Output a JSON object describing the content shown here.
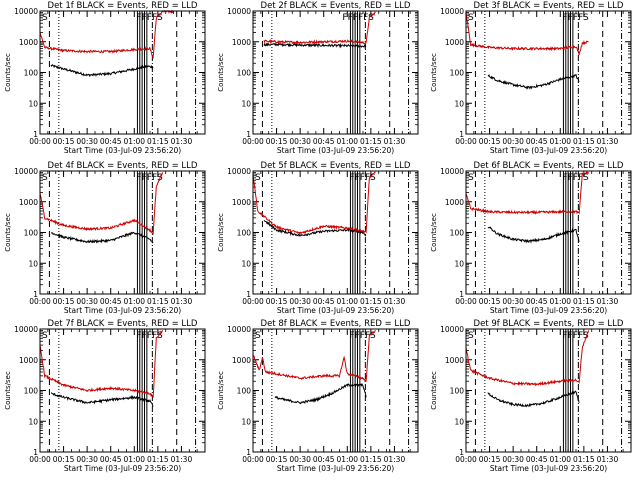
{
  "chart_data": [
    {
      "type": "line",
      "title": "Det 1f BLACK = Events, RED = LLD",
      "xlabel": "Start Time (03-Jul-09 23:56:20)",
      "ylabel": "Counts/sec",
      "xticks": [
        "00:00",
        "00:15",
        "00:30",
        "00:45",
        "01:00",
        "01:15",
        "01:30"
      ],
      "yticks": [
        "1",
        "10",
        "100",
        "1000",
        "10000"
      ],
      "ylim": [
        1,
        10000
      ],
      "yscale": "log",
      "xlim_minutes": [
        0,
        105
      ],
      "flag_labels": [
        "S",
        "FFFFS"
      ],
      "series": [
        {
          "name": "Events",
          "color": "#000000",
          "minutes": [
            7,
            15,
            30,
            45,
            60,
            68,
            72
          ],
          "values": [
            170,
            130,
            82,
            92,
            130,
            160,
            150
          ]
        },
        {
          "name": "LLD",
          "color": "#cc0000",
          "minutes": [
            0,
            3,
            15,
            30,
            45,
            60,
            70,
            72,
            74,
            78,
            85
          ],
          "values": [
            2000,
            650,
            520,
            480,
            480,
            560,
            600,
            300,
            6000,
            9500,
            9500
          ]
        }
      ],
      "verticals": {
        "dashed": [
          6,
          87
        ],
        "dotted": [
          12
        ],
        "solid": [
          62,
          63.5,
          65,
          66.5,
          68
        ],
        "dashdot": [
          71.5,
          99
        ]
      }
    },
    {
      "type": "line",
      "title": "Det 2f BLACK = Events, RED = LLD",
      "xlabel": "Start Time (03-Jul-09 23:56:20)",
      "ylabel": "Counts/sec",
      "xticks": [
        "00:00",
        "00:15",
        "00:30",
        "00:45",
        "01:00",
        "01:15",
        "01:30"
      ],
      "yticks": [
        "1",
        "10",
        "100",
        "1000",
        "10000"
      ],
      "ylim": [
        1,
        10000
      ],
      "yscale": "log",
      "xlim_minutes": [
        0,
        105
      ],
      "flag_labels": [
        "FFFFFS"
      ],
      "series": [
        {
          "name": "Events",
          "color": "#000000",
          "minutes": [
            7,
            15,
            30,
            45,
            60,
            70,
            72
          ],
          "values": [
            800,
            820,
            780,
            760,
            740,
            720,
            700
          ]
        },
        {
          "name": "LLD",
          "color": "#cc0000",
          "minutes": [
            7,
            15,
            30,
            45,
            60,
            70,
            72,
            74,
            78
          ],
          "values": [
            1050,
            1000,
            950,
            1000,
            1050,
            950,
            900,
            6000,
            9000
          ]
        }
      ],
      "verticals": {
        "dashed": [
          6,
          87
        ],
        "dotted": [
          12
        ],
        "solid": [
          62,
          63.5,
          65,
          66.5,
          68
        ],
        "dashdot": [
          71.5,
          99
        ]
      }
    },
    {
      "type": "line",
      "title": "Det 3f BLACK = Events, RED = LLD",
      "xlabel": "Start Time (03-Jul-09 23:56:20)",
      "ylabel": "Counts/sec",
      "xticks": [
        "00:00",
        "00:15",
        "00:30",
        "00:45",
        "01:00",
        "01:15",
        "01:30"
      ],
      "yticks": [
        "1",
        "10",
        "100",
        "1000",
        "10000"
      ],
      "ylim": [
        1,
        10000
      ],
      "yscale": "log",
      "xlim_minutes": [
        0,
        105
      ],
      "flag_labels": [
        "S",
        "FFFFS"
      ],
      "series": [
        {
          "name": "Events",
          "color": "#000000",
          "minutes": [
            14,
            20,
            30,
            40,
            50,
            60,
            70,
            72
          ],
          "values": [
            80,
            55,
            40,
            32,
            40,
            60,
            80,
            50
          ]
        },
        {
          "name": "LLD",
          "color": "#cc0000",
          "minutes": [
            0,
            3,
            15,
            30,
            45,
            60,
            70,
            72,
            74,
            78
          ],
          "values": [
            9000,
            800,
            650,
            600,
            600,
            600,
            700,
            400,
            900,
            1000
          ]
        }
      ],
      "verticals": {
        "dashed": [
          6,
          87
        ],
        "dotted": [
          12
        ],
        "solid": [
          62,
          63.5,
          65,
          66.5,
          68
        ],
        "dashdot": [
          71.5,
          99
        ]
      }
    },
    {
      "type": "line",
      "title": "Det 4f BLACK = Events, RED = LLD",
      "xlabel": "Start Time (03-Jul-09 23:56:20)",
      "ylabel": "Counts/sec",
      "xticks": [
        "00:00",
        "00:15",
        "00:30",
        "00:45",
        "01:00",
        "01:15",
        "01:30"
      ],
      "yticks": [
        "1",
        "10",
        "100",
        "1000",
        "10000"
      ],
      "ylim": [
        1,
        10000
      ],
      "yscale": "log",
      "xlim_minutes": [
        0,
        105
      ],
      "flag_labels": [
        "S",
        "FFFFS"
      ],
      "series": [
        {
          "name": "Events",
          "color": "#000000",
          "minutes": [
            7,
            15,
            30,
            45,
            60,
            70,
            72
          ],
          "values": [
            100,
            70,
            50,
            55,
            100,
            60,
            45
          ]
        },
        {
          "name": "LLD",
          "color": "#cc0000",
          "minutes": [
            0,
            3,
            15,
            30,
            45,
            60,
            70,
            72,
            74,
            78
          ],
          "values": [
            2000,
            300,
            170,
            130,
            140,
            250,
            120,
            90,
            3000,
            9000
          ]
        }
      ],
      "verticals": {
        "dashed": [
          6,
          87
        ],
        "dotted": [
          12
        ],
        "solid": [
          62,
          63.5,
          65,
          66.5,
          68
        ],
        "dashdot": [
          71.5,
          99
        ]
      }
    },
    {
      "type": "line",
      "title": "Det 5f BLACK = Events, RED = LLD",
      "xlabel": "Start Time (03-Jul-09 23:56:20)",
      "ylabel": "Counts/sec",
      "xticks": [
        "00:00",
        "00:15",
        "00:30",
        "00:45",
        "01:00",
        "01:15",
        "01:30"
      ],
      "yticks": [
        "1",
        "10",
        "100",
        "1000",
        "10000"
      ],
      "ylim": [
        1,
        10000
      ],
      "yscale": "log",
      "xlim_minutes": [
        0,
        105
      ],
      "flag_labels": [
        "S",
        "FFFFS"
      ],
      "series": [
        {
          "name": "Events",
          "color": "#000000",
          "minutes": [
            7,
            15,
            30,
            45,
            60,
            70,
            72
          ],
          "values": [
            250,
            120,
            80,
            110,
            120,
            100,
            80
          ]
        },
        {
          "name": "LLD",
          "color": "#cc0000",
          "minutes": [
            0,
            3,
            15,
            30,
            45,
            60,
            70,
            72,
            74,
            78
          ],
          "values": [
            8000,
            500,
            150,
            95,
            160,
            140,
            110,
            100,
            6000,
            9000
          ]
        }
      ],
      "verticals": {
        "dashed": [
          6,
          87
        ],
        "dotted": [
          12
        ],
        "solid": [
          62,
          63.5,
          65,
          66.5,
          68
        ],
        "dashdot": [
          71.5,
          99
        ]
      }
    },
    {
      "type": "line",
      "title": "Det 6f BLACK = Events, RED = LLD",
      "xlabel": "Start Time (03-Jul-09 23:56:20)",
      "ylabel": "Counts/sec",
      "xticks": [
        "00:00",
        "00:15",
        "00:30",
        "00:45",
        "01:00",
        "01:15",
        "01:30"
      ],
      "yticks": [
        "1",
        "10",
        "100",
        "1000",
        "10000"
      ],
      "ylim": [
        1,
        10000
      ],
      "yscale": "log",
      "xlim_minutes": [
        0,
        105
      ],
      "flag_labels": [
        "S",
        "FFFFS"
      ],
      "series": [
        {
          "name": "Events",
          "color": "#000000",
          "minutes": [
            14,
            20,
            30,
            40,
            50,
            60,
            70,
            72
          ],
          "values": [
            160,
            90,
            60,
            52,
            60,
            90,
            120,
            50
          ]
        },
        {
          "name": "LLD",
          "color": "#cc0000",
          "minutes": [
            0,
            3,
            15,
            30,
            45,
            60,
            70,
            72,
            74,
            78
          ],
          "values": [
            1800,
            600,
            470,
            450,
            450,
            470,
            480,
            420,
            8000,
            9000
          ]
        }
      ],
      "verticals": {
        "dashed": [
          6,
          87
        ],
        "dotted": [
          12
        ],
        "solid": [
          62,
          63.5,
          65,
          66.5,
          68
        ],
        "dashdot": [
          71.5,
          99
        ]
      }
    },
    {
      "type": "line",
      "title": "Det 7f BLACK = Events, RED = LLD",
      "xlabel": "Start Time (03-Jul-09 23:56:20)",
      "ylabel": "Counts/sec",
      "xticks": [
        "00:00",
        "00:15",
        "00:30",
        "00:45",
        "01:00",
        "01:15",
        "01:30"
      ],
      "yticks": [
        "1",
        "10",
        "100",
        "1000",
        "10000"
      ],
      "ylim": [
        1,
        10000
      ],
      "yscale": "log",
      "xlim_minutes": [
        0,
        105
      ],
      "flag_labels": [
        "S",
        "FFFFS"
      ],
      "series": [
        {
          "name": "Events",
          "color": "#000000",
          "minutes": [
            7,
            15,
            30,
            45,
            60,
            70,
            72
          ],
          "values": [
            80,
            60,
            40,
            50,
            60,
            45,
            30
          ]
        },
        {
          "name": "LLD",
          "color": "#cc0000",
          "minutes": [
            0,
            3,
            15,
            30,
            45,
            60,
            70,
            72,
            74,
            78
          ],
          "values": [
            3000,
            300,
            150,
            100,
            120,
            100,
            80,
            60,
            5000,
            9000
          ]
        }
      ],
      "verticals": {
        "dashed": [
          6,
          87
        ],
        "dotted": [
          12
        ],
        "solid": [
          62,
          63.5,
          65,
          66.5,
          68
        ],
        "dashdot": [
          71.5,
          99
        ]
      }
    },
    {
      "type": "line",
      "title": "Det 8f BLACK = Events, RED = LLD",
      "xlabel": "Start Time (03-Jul-09 23:56:20)",
      "ylabel": "Counts/sec",
      "xticks": [
        "00:00",
        "00:15",
        "00:30",
        "00:45",
        "01:00",
        "01:15",
        "01:30"
      ],
      "yticks": [
        "1",
        "10",
        "100",
        "1000",
        "10000"
      ],
      "ylim": [
        1,
        10000
      ],
      "yscale": "log",
      "xlim_minutes": [
        0,
        105
      ],
      "flag_labels": [
        "S",
        "FFFFS"
      ],
      "series": [
        {
          "name": "Events",
          "color": "#000000",
          "minutes": [
            14,
            20,
            30,
            40,
            50,
            60,
            70,
            72
          ],
          "values": [
            60,
            50,
            40,
            50,
            80,
            150,
            150,
            60
          ]
        },
        {
          "name": "LLD",
          "color": "#cc0000",
          "minutes": [
            0,
            4,
            6,
            8,
            15,
            30,
            45,
            55,
            58,
            60,
            70,
            72,
            74,
            78
          ],
          "values": [
            1500,
            450,
            1200,
            400,
            350,
            250,
            300,
            300,
            1200,
            350,
            250,
            200,
            6000,
            9000
          ]
        }
      ],
      "verticals": {
        "dashed": [
          6,
          87
        ],
        "dotted": [
          12
        ],
        "solid": [
          62,
          63.5,
          65,
          66.5,
          68
        ],
        "dashdot": [
          71.5,
          99
        ]
      }
    },
    {
      "type": "line",
      "title": "Det 9f BLACK = Events, RED = LLD",
      "xlabel": "Start Time (03-Jul-09 23:56:20)",
      "ylabel": "Counts/sec",
      "xticks": [
        "00:00",
        "00:15",
        "00:30",
        "00:45",
        "01:00",
        "01:15",
        "01:30"
      ],
      "yticks": [
        "1",
        "10",
        "100",
        "1000",
        "10000"
      ],
      "ylim": [
        1,
        10000
      ],
      "yscale": "log",
      "xlim_minutes": [
        0,
        105
      ],
      "flag_labels": [
        "S",
        "FFFFS"
      ],
      "series": [
        {
          "name": "Events",
          "color": "#000000",
          "minutes": [
            14,
            20,
            30,
            40,
            50,
            60,
            70,
            72
          ],
          "values": [
            80,
            50,
            35,
            32,
            40,
            60,
            90,
            40
          ]
        },
        {
          "name": "LLD",
          "color": "#cc0000",
          "minutes": [
            0,
            3,
            15,
            30,
            45,
            60,
            70,
            72,
            74,
            78
          ],
          "values": [
            2500,
            450,
            250,
            170,
            160,
            200,
            220,
            180,
            2500,
            9000
          ]
        }
      ],
      "verticals": {
        "dashed": [
          6,
          87
        ],
        "dotted": [
          12
        ],
        "solid": [
          62,
          63.5,
          65,
          66.5,
          68
        ],
        "dashdot": [
          71.5,
          99
        ]
      }
    }
  ]
}
